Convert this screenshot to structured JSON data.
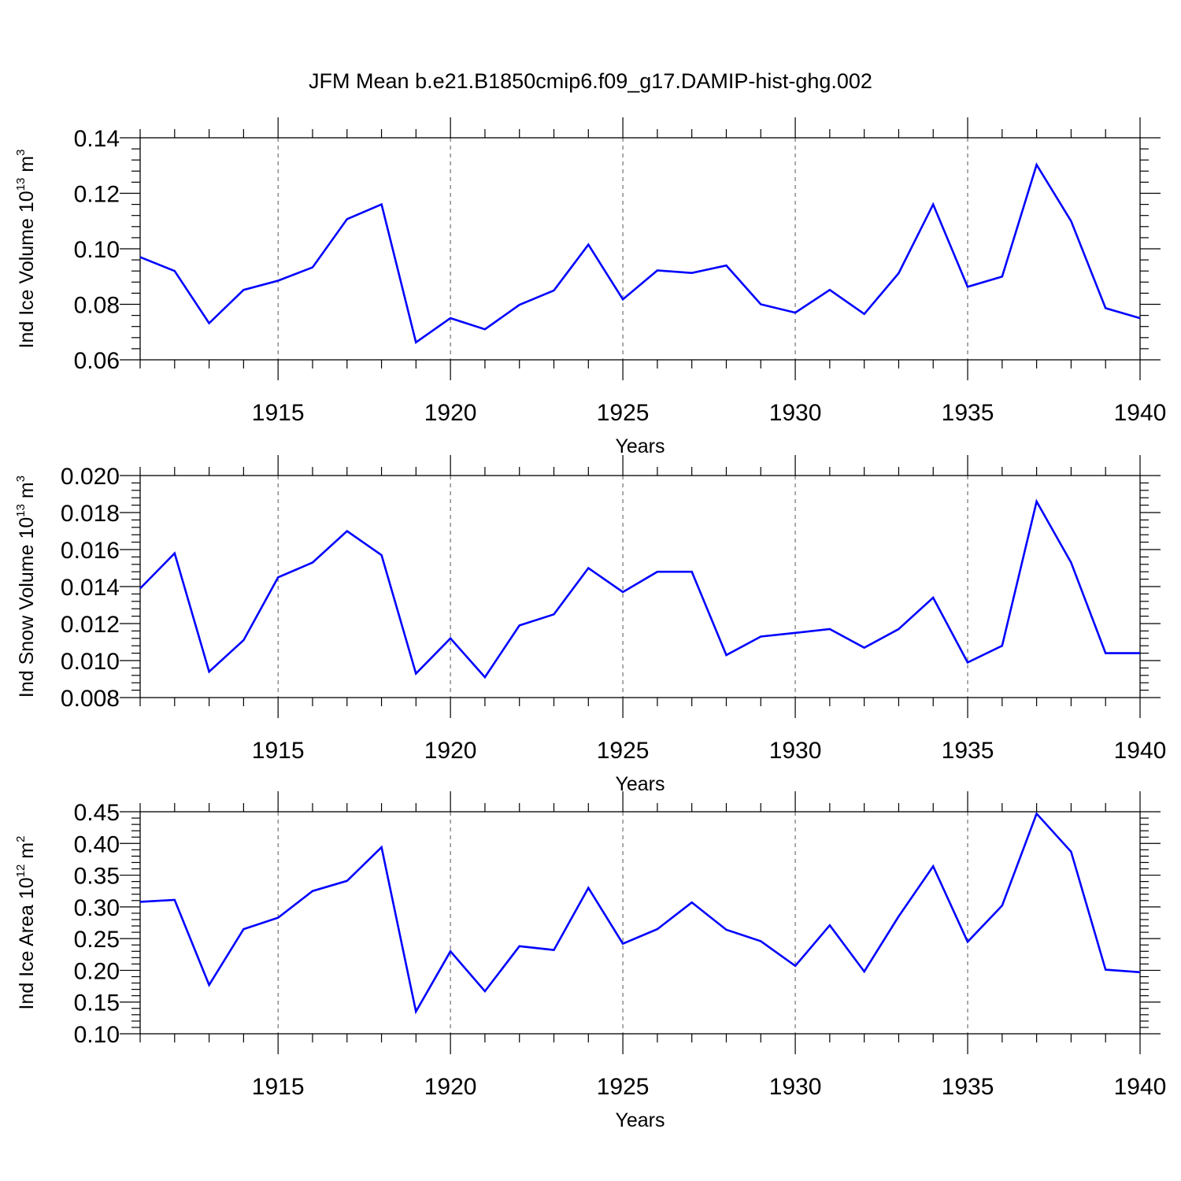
{
  "figure_title": "JFM Mean b.e21.B1850cmip6.f09_g17.DAMIP-hist-ghg.002",
  "colors": {
    "series": "#0000ff",
    "axes": "#000000",
    "grid": "#555555"
  },
  "chart_data": [
    {
      "type": "line",
      "ylabel": {
        "main": "Ind Ice Volume 10",
        "exponent": "13",
        "unit": " m",
        "unit_exponent": "3"
      },
      "xlabel": "Years",
      "xlim": [
        1911,
        1940
      ],
      "ylim": [
        0.06,
        0.14
      ],
      "y_ticks": [
        0.06,
        0.08,
        0.1,
        0.12,
        0.14
      ],
      "y_tick_labels": [
        "0.06",
        "0.08",
        "0.10",
        "0.12",
        "0.14"
      ],
      "y_minor_step": 0.004,
      "x_ticks": [
        1915,
        1920,
        1925,
        1930,
        1935,
        1940
      ],
      "x_tick_labels": [
        "1915",
        "1920",
        "1925",
        "1930",
        "1935",
        "1940"
      ],
      "grid": "vertical dashed at major x ticks",
      "x": [
        1911,
        1912,
        1913,
        1914,
        1915,
        1916,
        1917,
        1918,
        1919,
        1920,
        1921,
        1922,
        1923,
        1924,
        1925,
        1926,
        1927,
        1928,
        1929,
        1930,
        1931,
        1932,
        1933,
        1934,
        1935,
        1936,
        1937,
        1938,
        1939,
        1940
      ],
      "series": [
        {
          "name": "Ind Ice Volume",
          "values": [
            0.097,
            0.092,
            0.0732,
            0.0852,
            0.0885,
            0.0933,
            0.1107,
            0.116,
            0.0663,
            0.075,
            0.071,
            0.0798,
            0.085,
            0.1015,
            0.0818,
            0.0922,
            0.0913,
            0.094,
            0.08,
            0.077,
            0.0852,
            0.0765,
            0.0912,
            0.116,
            0.0863,
            0.09,
            0.1303,
            0.11,
            0.0786,
            0.075
          ]
        }
      ]
    },
    {
      "type": "line",
      "ylabel": {
        "main": "Ind Snow Volume 10",
        "exponent": "13",
        "unit": " m",
        "unit_exponent": "3"
      },
      "xlabel": "Years",
      "xlim": [
        1911,
        1940
      ],
      "ylim": [
        0.008,
        0.02
      ],
      "y_ticks": [
        0.008,
        0.01,
        0.012,
        0.014,
        0.016,
        0.018,
        0.02
      ],
      "y_tick_labels": [
        "0.008",
        "0.010",
        "0.012",
        "0.014",
        "0.016",
        "0.018",
        "0.020"
      ],
      "y_minor_step": 0.0004,
      "x_ticks": [
        1915,
        1920,
        1925,
        1930,
        1935,
        1940
      ],
      "x_tick_labels": [
        "1915",
        "1920",
        "1925",
        "1930",
        "1935",
        "1940"
      ],
      "grid": "vertical dashed at major x ticks",
      "x": [
        1911,
        1912,
        1913,
        1914,
        1915,
        1916,
        1917,
        1918,
        1919,
        1920,
        1921,
        1922,
        1923,
        1924,
        1925,
        1926,
        1927,
        1928,
        1929,
        1930,
        1931,
        1932,
        1933,
        1934,
        1935,
        1936,
        1937,
        1938,
        1939,
        1940
      ],
      "series": [
        {
          "name": "Ind Snow Volume",
          "values": [
            0.0139,
            0.0158,
            0.0094,
            0.0111,
            0.0145,
            0.0153,
            0.017,
            0.0157,
            0.0093,
            0.0112,
            0.0091,
            0.0119,
            0.0125,
            0.015,
            0.0137,
            0.0148,
            0.0148,
            0.0103,
            0.0113,
            0.0115,
            0.0117,
            0.0107,
            0.0117,
            0.0134,
            0.0099,
            0.0108,
            0.0186,
            0.0153,
            0.0104,
            0.0104
          ]
        }
      ]
    },
    {
      "type": "line",
      "ylabel": {
        "main": "Ind Ice Area 10",
        "exponent": "12",
        "unit": " m",
        "unit_exponent": "2"
      },
      "xlabel": "Years",
      "xlim": [
        1911,
        1940
      ],
      "ylim": [
        0.1,
        0.45
      ],
      "y_ticks": [
        0.1,
        0.15,
        0.2,
        0.25,
        0.3,
        0.35,
        0.4,
        0.45
      ],
      "y_tick_labels": [
        "0.10",
        "0.15",
        "0.20",
        "0.25",
        "0.30",
        "0.35",
        "0.40",
        "0.45"
      ],
      "y_minor_step": 0.01,
      "x_ticks": [
        1915,
        1920,
        1925,
        1930,
        1935,
        1940
      ],
      "x_tick_labels": [
        "1915",
        "1920",
        "1925",
        "1930",
        "1935",
        "1940"
      ],
      "grid": "vertical dashed at major x ticks",
      "x": [
        1911,
        1912,
        1913,
        1914,
        1915,
        1916,
        1917,
        1918,
        1919,
        1920,
        1921,
        1922,
        1923,
        1924,
        1925,
        1926,
        1927,
        1928,
        1929,
        1930,
        1931,
        1932,
        1933,
        1934,
        1935,
        1936,
        1937,
        1938,
        1939,
        1940
      ],
      "series": [
        {
          "name": "Ind Ice Area",
          "values": [
            0.308,
            0.311,
            0.177,
            0.265,
            0.283,
            0.325,
            0.341,
            0.394,
            0.135,
            0.23,
            0.167,
            0.238,
            0.232,
            0.33,
            0.242,
            0.265,
            0.307,
            0.264,
            0.246,
            0.207,
            0.271,
            0.198,
            0.285,
            0.364,
            0.245,
            0.302,
            0.447,
            0.387,
            0.201,
            0.197
          ]
        }
      ]
    }
  ]
}
